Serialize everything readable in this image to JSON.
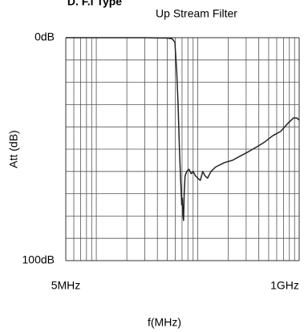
{
  "chart_data": {
    "type": "line",
    "title": "D. F.I Type",
    "subtitle": "Up Stream Filter",
    "x_label": "f(MHz)",
    "y_label": "Att (dB)",
    "xscale": "log",
    "xlim": [
      5,
      1000
    ],
    "ylim": [
      100,
      0
    ],
    "xticks": [
      {
        "value": 5,
        "label": "5MHz"
      },
      {
        "value": 1000,
        "label": "1GHz"
      }
    ],
    "yticks": [
      {
        "value": 0,
        "label": "0dB"
      },
      {
        "value": 100,
        "label": "100dB"
      }
    ],
    "xgrid": [
      6,
      7,
      8,
      9,
      10,
      20,
      30,
      40,
      50,
      60,
      70,
      80,
      90,
      100,
      200,
      300,
      400,
      500,
      600,
      700,
      800,
      900
    ],
    "ygrid": [
      10,
      20,
      30,
      40,
      50,
      60,
      70,
      80,
      90
    ],
    "grid": true,
    "color": "#222222",
    "x": [
      5,
      30,
      50,
      56,
      59.5,
      62,
      64,
      66,
      68,
      69.5,
      70.5,
      71.5,
      72.5,
      73.5,
      75,
      78,
      82,
      86,
      90,
      95,
      100,
      106,
      112,
      118,
      125,
      135,
      150,
      184,
      220,
      265,
      320,
      381,
      450,
      548,
      658,
      789,
      881,
      950,
      1000
    ],
    "values": [
      0,
      0,
      0.2,
      0.5,
      2,
      15,
      30,
      50,
      65,
      75,
      72,
      80,
      82,
      70,
      62,
      60,
      59,
      61,
      60,
      62,
      63,
      64,
      60,
      62,
      63,
      60,
      58,
      56,
      55,
      53,
      51,
      49,
      47,
      44,
      42,
      38,
      36,
      36,
      37
    ]
  }
}
